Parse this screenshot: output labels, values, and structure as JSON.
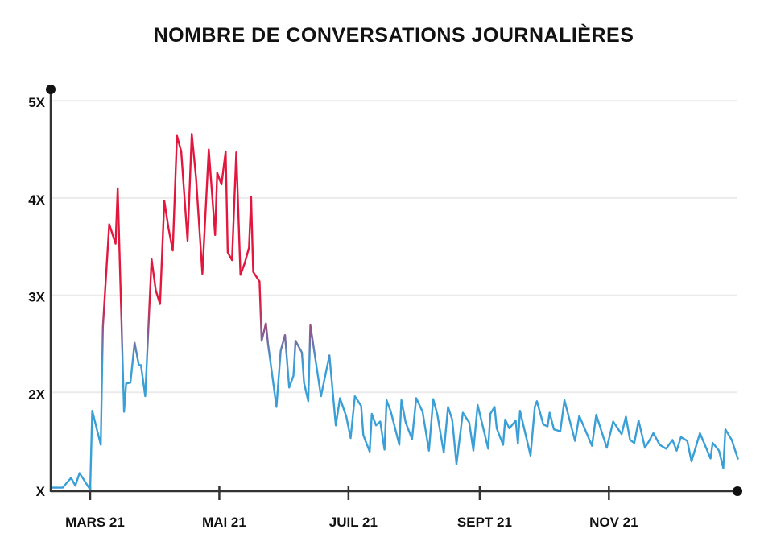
{
  "chart_data": {
    "type": "line",
    "title": "NOMBRE DE CONVERSATIONS JOURNALIÈRES",
    "xlabel": "",
    "ylabel": "",
    "x_unit": "days since 2021-03-01",
    "xlim": [
      -19,
      306
    ],
    "ylim": [
      1,
      5
    ],
    "grid": true,
    "y_ticks": [
      {
        "value": 5,
        "label": "5X"
      },
      {
        "value": 4,
        "label": "4X"
      },
      {
        "value": 3,
        "label": "3X"
      },
      {
        "value": 2,
        "label": "2X"
      },
      {
        "value": 1,
        "label": "X"
      }
    ],
    "x_ticks": [
      {
        "value": 0,
        "label": "MARS 21"
      },
      {
        "value": 61,
        "label": "MAI 21"
      },
      {
        "value": 122,
        "label": "JUIL 21"
      },
      {
        "value": 184,
        "label": "SEPT 21"
      },
      {
        "value": 245,
        "label": "NOV 21"
      }
    ],
    "colors": {
      "high": "#e3173e",
      "mid": "#8a5a8f",
      "low": "#3a9fd6",
      "grid": "#ebebeb",
      "axis": "#333333"
    },
    "color_scale": {
      "low_below": 2.3,
      "high_above": 2.95
    },
    "series": [
      {
        "name": "conversations",
        "points": [
          [
            -18,
            1.02
          ],
          [
            -13,
            1.02
          ],
          [
            -9,
            1.12
          ],
          [
            -7,
            1.04
          ],
          [
            -5,
            1.17
          ],
          [
            0,
            1.0
          ],
          [
            1,
            1.81
          ],
          [
            5,
            1.46
          ],
          [
            6,
            2.67
          ],
          [
            9,
            3.73
          ],
          [
            12,
            3.53
          ],
          [
            13,
            4.1
          ],
          [
            16,
            1.8
          ],
          [
            17,
            2.09
          ],
          [
            19,
            2.1
          ],
          [
            21,
            2.51
          ],
          [
            23,
            2.28
          ],
          [
            24,
            2.28
          ],
          [
            26,
            1.96
          ],
          [
            29,
            3.37
          ],
          [
            31,
            3.05
          ],
          [
            33,
            2.91
          ],
          [
            35,
            3.97
          ],
          [
            37,
            3.69
          ],
          [
            39,
            3.46
          ],
          [
            41,
            4.64
          ],
          [
            43,
            4.48
          ],
          [
            46,
            3.56
          ],
          [
            48,
            4.66
          ],
          [
            50,
            4.21
          ],
          [
            53,
            3.22
          ],
          [
            56,
            4.5
          ],
          [
            59,
            3.62
          ],
          [
            60,
            4.26
          ],
          [
            62,
            4.14
          ],
          [
            64,
            4.48
          ],
          [
            65,
            3.44
          ],
          [
            67,
            3.36
          ],
          [
            69,
            4.47
          ],
          [
            71,
            3.21
          ],
          [
            73,
            3.33
          ],
          [
            75,
            3.49
          ],
          [
            76,
            4.01
          ],
          [
            77,
            3.24
          ],
          [
            80,
            3.14
          ],
          [
            81,
            2.53
          ],
          [
            83,
            2.71
          ],
          [
            84,
            2.5
          ],
          [
            88,
            1.85
          ],
          [
            90,
            2.43
          ],
          [
            92,
            2.59
          ],
          [
            94,
            2.05
          ],
          [
            96,
            2.17
          ],
          [
            97,
            2.53
          ],
          [
            100,
            2.41
          ],
          [
            101,
            2.1
          ],
          [
            103,
            1.91
          ],
          [
            104,
            2.69
          ],
          [
            109,
            1.96
          ],
          [
            113,
            2.38
          ],
          [
            116,
            1.66
          ],
          [
            118,
            1.94
          ],
          [
            121,
            1.75
          ],
          [
            123,
            1.53
          ],
          [
            125,
            1.96
          ],
          [
            128,
            1.86
          ],
          [
            129,
            1.56
          ],
          [
            132,
            1.39
          ],
          [
            133,
            1.78
          ],
          [
            135,
            1.66
          ],
          [
            137,
            1.7
          ],
          [
            139,
            1.41
          ],
          [
            140,
            1.92
          ],
          [
            142,
            1.8
          ],
          [
            146,
            1.46
          ],
          [
            147,
            1.92
          ],
          [
            149,
            1.69
          ],
          [
            152,
            1.52
          ],
          [
            154,
            1.94
          ],
          [
            157,
            1.8
          ],
          [
            160,
            1.4
          ],
          [
            162,
            1.93
          ],
          [
            164,
            1.77
          ],
          [
            167,
            1.38
          ],
          [
            169,
            1.85
          ],
          [
            171,
            1.72
          ],
          [
            173,
            1.26
          ],
          [
            176,
            1.79
          ],
          [
            179,
            1.69
          ],
          [
            181,
            1.4
          ],
          [
            183,
            1.87
          ],
          [
            188,
            1.42
          ],
          [
            189,
            1.78
          ],
          [
            191,
            1.85
          ],
          [
            192,
            1.63
          ],
          [
            195,
            1.46
          ],
          [
            196,
            1.72
          ],
          [
            198,
            1.63
          ],
          [
            201,
            1.71
          ],
          [
            202,
            1.47
          ],
          [
            203,
            1.81
          ],
          [
            208,
            1.35
          ],
          [
            210,
            1.85
          ],
          [
            211,
            1.91
          ],
          [
            214,
            1.67
          ],
          [
            216,
            1.65
          ],
          [
            217,
            1.79
          ],
          [
            219,
            1.62
          ],
          [
            222,
            1.6
          ],
          [
            224,
            1.92
          ],
          [
            229,
            1.5
          ],
          [
            231,
            1.76
          ],
          [
            237,
            1.45
          ],
          [
            239,
            1.77
          ],
          [
            244,
            1.43
          ],
          [
            247,
            1.7
          ],
          [
            251,
            1.57
          ],
          [
            253,
            1.75
          ],
          [
            255,
            1.51
          ],
          [
            257,
            1.48
          ],
          [
            259,
            1.71
          ],
          [
            262,
            1.43
          ],
          [
            264,
            1.5
          ],
          [
            266,
            1.58
          ],
          [
            269,
            1.46
          ],
          [
            272,
            1.42
          ],
          [
            275,
            1.51
          ],
          [
            277,
            1.4
          ],
          [
            279,
            1.54
          ],
          [
            282,
            1.5
          ],
          [
            284,
            1.29
          ],
          [
            288,
            1.58
          ],
          [
            293,
            1.32
          ],
          [
            294,
            1.48
          ],
          [
            297,
            1.4
          ],
          [
            299,
            1.22
          ],
          [
            300,
            1.62
          ],
          [
            303,
            1.51
          ],
          [
            306,
            1.31
          ]
        ]
      }
    ]
  }
}
